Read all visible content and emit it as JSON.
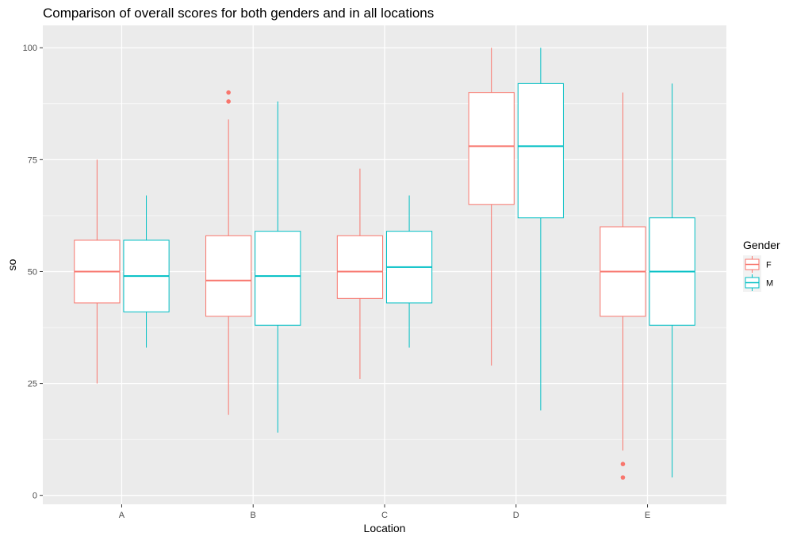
{
  "chart_data": {
    "type": "boxplot",
    "title": "Comparison of overall scores for both genders and in all locations",
    "xlabel": "Location",
    "ylabel": "so",
    "categories": [
      "A",
      "B",
      "C",
      "D",
      "E"
    ],
    "ylim": [
      -2,
      105
    ],
    "yticks": [
      0,
      25,
      50,
      75,
      100
    ],
    "grid": true,
    "legend": {
      "title": "Gender",
      "position": "right"
    },
    "series": [
      {
        "name": "F",
        "color": "#F8766D",
        "boxes": [
          {
            "category": "A",
            "min": 25,
            "q1": 43,
            "median": 50,
            "q3": 57,
            "max": 75,
            "outliers": []
          },
          {
            "category": "B",
            "min": 18,
            "q1": 40,
            "median": 48,
            "q3": 58,
            "max": 84,
            "outliers": [
              88,
              90
            ]
          },
          {
            "category": "C",
            "min": 26,
            "q1": 44,
            "median": 50,
            "q3": 58,
            "max": 73,
            "outliers": []
          },
          {
            "category": "D",
            "min": 29,
            "q1": 65,
            "median": 78,
            "q3": 90,
            "max": 100,
            "outliers": []
          },
          {
            "category": "E",
            "min": 10,
            "q1": 40,
            "median": 50,
            "q3": 60,
            "max": 90,
            "outliers": [
              4,
              7
            ]
          }
        ]
      },
      {
        "name": "M",
        "color": "#00BFC4",
        "boxes": [
          {
            "category": "A",
            "min": 33,
            "q1": 41,
            "median": 49,
            "q3": 57,
            "max": 67,
            "outliers": []
          },
          {
            "category": "B",
            "min": 14,
            "q1": 38,
            "median": 49,
            "q3": 59,
            "max": 88,
            "outliers": []
          },
          {
            "category": "C",
            "min": 33,
            "q1": 43,
            "median": 51,
            "q3": 59,
            "max": 67,
            "outliers": []
          },
          {
            "category": "D",
            "min": 19,
            "q1": 62,
            "median": 78,
            "q3": 92,
            "max": 100,
            "outliers": []
          },
          {
            "category": "E",
            "min": 4,
            "q1": 38,
            "median": 50,
            "q3": 62,
            "max": 92,
            "outliers": []
          }
        ]
      }
    ]
  }
}
